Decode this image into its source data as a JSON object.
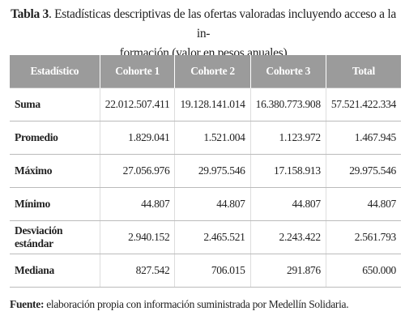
{
  "title": {
    "label": "Tabla 3",
    "lines": [
      ". Estadísticas descriptivas de las ofertas valoradas incluyendo acceso a la in-",
      "formación (valor en pesos anuales)"
    ]
  },
  "table": {
    "header": [
      "Estadístico",
      "Cohorte 1",
      "Cohorte 2",
      "Cohorte 3",
      "Total"
    ],
    "rows": [
      [
        "Suma",
        "22.012.507.411",
        "19.128.141.014",
        "16.380.773.908",
        "57.521.422.334"
      ],
      [
        "Promedio",
        "1.829.041",
        "1.521.004",
        "1.123.972",
        "1.467.945"
      ],
      [
        "Máximo",
        "27.056.976",
        "29.975.546",
        "17.158.913",
        "29.975.546"
      ],
      [
        "Mínimo",
        "44.807",
        "44.807",
        "44.807",
        "44.807"
      ],
      [
        "Desviación estándar",
        "2.940.152",
        "2.465.521",
        "2.243.422",
        "2.561.793"
      ],
      [
        "Mediana",
        "827.542",
        "706.015",
        "291.876",
        "650.000"
      ]
    ]
  },
  "source": {
    "label": "Fuente:",
    "text": " elaboración propia con información suministrada por Medellín Solidaria."
  }
}
